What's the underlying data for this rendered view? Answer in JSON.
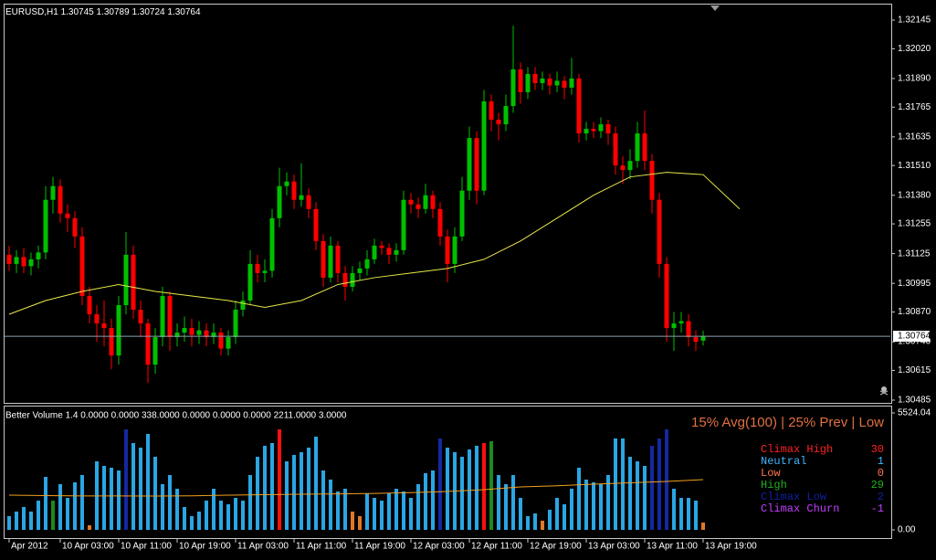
{
  "chart_data": [
    {
      "type": "candlestick",
      "title": "EURUSD,H1",
      "up_color": "#00c000",
      "down_color": "#ff0000",
      "xlim": [
        -0.625,
        120.625
      ],
      "ylim": [
        1.30477,
        1.32213
      ],
      "yticks": [
        1.32145,
        {
          "value": 1.3202,
          "label": "1.32020"
        },
        {
          "value": 1.3189,
          "label": "1.31890"
        },
        1.31765,
        1.31635,
        {
          "value": 1.3151,
          "label": "1.31510"
        },
        {
          "value": 1.3138,
          "label": "1.31380"
        },
        1.31255,
        1.31125,
        1.30995,
        {
          "value": 1.3087,
          "label": "1.30870"
        },
        {
          "value": 1.3074,
          "label": "1.30740"
        },
        1.30615,
        1.30485
      ],
      "candles": [
        [
          1.3112,
          1.3116,
          1.3105,
          1.3108
        ],
        [
          1.3108,
          1.3114,
          1.3104,
          1.3111
        ],
        [
          1.3111,
          1.3115,
          1.3104,
          1.3107
        ],
        [
          1.3107,
          1.3113,
          1.3103,
          1.311
        ],
        [
          1.311,
          1.3116,
          1.3106,
          1.3113
        ],
        [
          1.3113,
          1.3142,
          1.311,
          1.3136
        ],
        [
          1.3136,
          1.3146,
          1.313,
          1.3142
        ],
        [
          1.3142,
          1.3145,
          1.3126,
          1.313
        ],
        [
          1.313,
          1.3134,
          1.3122,
          1.3128
        ],
        [
          1.3128,
          1.3131,
          1.3115,
          1.312
        ],
        [
          1.312,
          1.3124,
          1.309,
          1.3094
        ],
        [
          1.3094,
          1.3098,
          1.3082,
          1.3086
        ],
        [
          1.3086,
          1.309,
          1.3074,
          1.3082
        ],
        [
          1.3082,
          1.3092,
          1.3072,
          1.308
        ],
        [
          1.308,
          1.3084,
          1.3062,
          1.3068
        ],
        [
          1.3068,
          1.3094,
          1.3064,
          1.309
        ],
        [
          1.309,
          1.3122,
          1.3086,
          1.3112
        ],
        [
          1.3112,
          1.3116,
          1.3084,
          1.3088
        ],
        [
          1.3088,
          1.3092,
          1.3076,
          1.3082
        ],
        [
          1.3082,
          1.3084,
          1.3056,
          1.3064
        ],
        [
          1.3064,
          1.308,
          1.306,
          1.3076
        ],
        [
          1.3076,
          1.3098,
          1.3072,
          1.3094
        ],
        [
          1.3094,
          1.3096,
          1.307,
          1.3076
        ],
        [
          1.3076,
          1.3082,
          1.3072,
          1.3078
        ],
        [
          1.3078,
          1.3085,
          1.3074,
          1.308
        ],
        [
          1.308,
          1.3084,
          1.3072,
          1.3077
        ],
        [
          1.3077,
          1.3083,
          1.3073,
          1.3079
        ],
        [
          1.3079,
          1.3082,
          1.3072,
          1.3076
        ],
        [
          1.3076,
          1.3082,
          1.3073,
          1.3078
        ],
        [
          1.3078,
          1.308,
          1.3068,
          1.3071
        ],
        [
          1.3071,
          1.3079,
          1.3068,
          1.3076
        ],
        [
          1.3076,
          1.3092,
          1.3073,
          1.3088
        ],
        [
          1.3088,
          1.3096,
          1.3085,
          1.3092
        ],
        [
          1.3092,
          1.3114,
          1.309,
          1.3108
        ],
        [
          1.3108,
          1.3112,
          1.31,
          1.3104
        ],
        [
          1.3104,
          1.311,
          1.31,
          1.3105
        ],
        [
          1.3105,
          1.3132,
          1.3102,
          1.3128
        ],
        [
          1.3128,
          1.315,
          1.3124,
          1.3142
        ],
        [
          1.3142,
          1.3148,
          1.3138,
          1.3144
        ],
        [
          1.3144,
          1.3147,
          1.3132,
          1.3136
        ],
        [
          1.3136,
          1.3152,
          1.3133,
          1.3138
        ],
        [
          1.3138,
          1.3141,
          1.3128,
          1.3132
        ],
        [
          1.3132,
          1.3135,
          1.3114,
          1.3118
        ],
        [
          1.3118,
          1.3121,
          1.3098,
          1.3102
        ],
        [
          1.3102,
          1.312,
          1.31,
          1.3116
        ],
        [
          1.3116,
          1.3118,
          1.31,
          1.3104
        ],
        [
          1.3104,
          1.3107,
          1.3092,
          1.3098
        ],
        [
          1.3098,
          1.3107,
          1.3096,
          1.3104
        ],
        [
          1.3104,
          1.3109,
          1.3101,
          1.3106
        ],
        [
          1.3106,
          1.3114,
          1.3103,
          1.311
        ],
        [
          1.311,
          1.3119,
          1.3108,
          1.3116
        ],
        [
          1.3116,
          1.3118,
          1.3112,
          1.3115
        ],
        [
          1.3115,
          1.3117,
          1.3108,
          1.3112
        ],
        [
          1.3112,
          1.3117,
          1.3109,
          1.3114
        ],
        [
          1.3114,
          1.314,
          1.3112,
          1.3136
        ],
        [
          1.3136,
          1.3139,
          1.313,
          1.3134
        ],
        [
          1.3134,
          1.3137,
          1.3128,
          1.3132
        ],
        [
          1.3132,
          1.3143,
          1.313,
          1.3138
        ],
        [
          1.3138,
          1.314,
          1.3128,
          1.3132
        ],
        [
          1.3132,
          1.3135,
          1.3116,
          1.312
        ],
        [
          1.312,
          1.3123,
          1.31,
          1.3108
        ],
        [
          1.3108,
          1.3124,
          1.3104,
          1.312
        ],
        [
          1.312,
          1.3146,
          1.3118,
          1.314
        ],
        [
          1.314,
          1.3168,
          1.3136,
          1.3163
        ],
        [
          1.3163,
          1.3166,
          1.3134,
          1.314
        ],
        [
          1.314,
          1.3184,
          1.3138,
          1.3179
        ],
        [
          1.3179,
          1.3182,
          1.3166,
          1.3171
        ],
        [
          1.3171,
          1.3174,
          1.3162,
          1.3169
        ],
        [
          1.3169,
          1.3182,
          1.3166,
          1.3177
        ],
        [
          1.3177,
          1.3212,
          1.3174,
          1.3193
        ],
        [
          1.3193,
          1.3196,
          1.3178,
          1.3183
        ],
        [
          1.3183,
          1.3194,
          1.318,
          1.3191
        ],
        [
          1.3191,
          1.3194,
          1.3184,
          1.3187
        ],
        [
          1.3187,
          1.3192,
          1.3184,
          1.3189
        ],
        [
          1.3189,
          1.3191,
          1.3182,
          1.3186
        ],
        [
          1.3186,
          1.3192,
          1.3183,
          1.3188
        ],
        [
          1.3188,
          1.319,
          1.318,
          1.3185
        ],
        [
          1.3185,
          1.3198,
          1.3182,
          1.3189
        ],
        [
          1.3189,
          1.3191,
          1.3161,
          1.3165
        ],
        [
          1.3165,
          1.317,
          1.3162,
          1.3167
        ],
        [
          1.3167,
          1.317,
          1.3163,
          1.3166
        ],
        [
          1.3166,
          1.3172,
          1.3163,
          1.3169
        ],
        [
          1.3169,
          1.3171,
          1.316,
          1.3165
        ],
        [
          1.3165,
          1.3168,
          1.3147,
          1.3151
        ],
        [
          1.3151,
          1.3155,
          1.3143,
          1.3149
        ],
        [
          1.3149,
          1.3158,
          1.3145,
          1.3153
        ],
        [
          1.3153,
          1.317,
          1.315,
          1.3165
        ],
        [
          1.3165,
          1.3175,
          1.3149,
          1.3153
        ],
        [
          1.3153,
          1.3156,
          1.313,
          1.3136
        ],
        [
          1.3136,
          1.3139,
          1.3102,
          1.3108
        ],
        [
          1.3108,
          1.3111,
          1.3074,
          1.308
        ],
        [
          1.308,
          1.3087,
          1.307,
          1.3082
        ],
        [
          1.3082,
          1.3087,
          1.3078,
          1.3083
        ],
        [
          1.3083,
          1.3086,
          1.3072,
          1.3076
        ],
        [
          1.3076,
          1.3079,
          1.307,
          1.3074
        ],
        [
          1.30745,
          1.30789,
          1.30724,
          1.30764
        ]
      ],
      "ma": {
        "color": "#e8e84a",
        "x": [
          0,
          5,
          10,
          15,
          20,
          25,
          30,
          35,
          40,
          45,
          50,
          55,
          60,
          65,
          70,
          75,
          80,
          85,
          90,
          95,
          100
        ],
        "values": [
          1.3086,
          1.3092,
          1.3096,
          1.3099,
          1.3096,
          1.3094,
          1.3092,
          1.3089,
          1.3092,
          1.3099,
          1.3102,
          1.3104,
          1.3106,
          1.311,
          1.3118,
          1.3128,
          1.3138,
          1.3146,
          1.3148,
          1.3147,
          1.3132
        ]
      }
    },
    {
      "type": "bar",
      "title": "Better Volume 1.4 0.0000 0.0000 338.0000 0.0000 0.0000 0.0000 2211.0000 3.0000",
      "subtitle": "15% Avg(100) | 25% Prev | Low",
      "xlim": [
        -0.625,
        120.625
      ],
      "xticks": [
        {
          "value": 0,
          "label": "Apr 2012"
        },
        {
          "value": 7,
          "label": "10 Apr 03:00"
        },
        {
          "value": 15,
          "label": "10 Apr 11:00"
        },
        {
          "value": 23,
          "label": "10 Apr 19:00"
        },
        {
          "value": 31,
          "label": "11 Apr 03:00"
        },
        {
          "value": 39,
          "label": "11 Apr 11:00"
        },
        {
          "value": 47,
          "label": "11 Apr 19:00"
        },
        {
          "value": 55,
          "label": "12 Apr 03:00"
        },
        {
          "value": 63,
          "label": "12 Apr 11:00"
        },
        {
          "value": 71,
          "label": "12 Apr 19:00"
        },
        {
          "value": 79,
          "label": "13 Apr 03:00"
        },
        {
          "value": 87,
          "label": "13 Apr 11:00"
        },
        {
          "value": 95,
          "label": "13 Apr 19:00"
        }
      ],
      "ylim": [
        0,
        5524.04
      ],
      "yticks": [
        5524.04,
        {
          "value": 0,
          "label": "0.00"
        }
      ],
      "values": [
        647,
        863,
        1079,
        863,
        1381,
        2503,
        1381,
        2158,
        1511,
        2244,
        2590,
        216,
        3237,
        3021,
        2935,
        2805,
        4748,
        4100,
        3884,
        4532,
        3453,
        2158,
        2590,
        1942,
        1079,
        647,
        863,
        1381,
        1942,
        1381,
        1208,
        1511,
        1381,
        2590,
        3453,
        3971,
        4100,
        4748,
        3237,
        3539,
        3669,
        3884,
        4402,
        2805,
        2374,
        1813,
        1942,
        863,
        647,
        1726,
        1511,
        1381,
        1726,
        1942,
        1813,
        1511,
        2158,
        2676,
        2805,
        4316,
        3884,
        3669,
        3453,
        3798,
        3971,
        4100,
        4187,
        2590,
        2158,
        2590,
        1511,
        647,
        777,
        432,
        950,
        1511,
        1208,
        1942,
        2935,
        2374,
        2244,
        2158,
        2590,
        4316,
        4316,
        3453,
        3237,
        3021,
        3971,
        4316,
        4748,
        1942,
        1511,
        1511,
        1381,
        345
      ],
      "colors": [
        "#2aa6e4",
        "#2aa6e4",
        "#2aa6e4",
        "#2aa6e4",
        "#2aa6e4",
        "#2aa6e4",
        "#1c8a1c",
        "#2aa6e4",
        "#2aa6e4",
        "#2aa6e4",
        "#2aa6e4",
        "#e07828",
        "#2aa6e4",
        "#2aa6e4",
        "#2aa6e4",
        "#2aa6e4",
        "#1428a0",
        "#2aa6e4",
        "#2aa6e4",
        "#2aa6e4",
        "#2aa6e4",
        "#2aa6e4",
        "#2aa6e4",
        "#2aa6e4",
        "#2aa6e4",
        "#2aa6e4",
        "#2aa6e4",
        "#2aa6e4",
        "#2aa6e4",
        "#2aa6e4",
        "#2aa6e4",
        "#2aa6e4",
        "#2aa6e4",
        "#2aa6e4",
        "#2aa6e4",
        "#2aa6e4",
        "#2aa6e4",
        "#ff1010",
        "#2aa6e4",
        "#2aa6e4",
        "#2aa6e4",
        "#2aa6e4",
        "#2aa6e4",
        "#2aa6e4",
        "#2aa6e4",
        "#2aa6e4",
        "#2aa6e4",
        "#e07828",
        "#e07828",
        "#2aa6e4",
        "#2aa6e4",
        "#2aa6e4",
        "#2aa6e4",
        "#2aa6e4",
        "#2aa6e4",
        "#2aa6e4",
        "#2aa6e4",
        "#2aa6e4",
        "#2aa6e4",
        "#1428a0",
        "#2aa6e4",
        "#2aa6e4",
        "#2aa6e4",
        "#2aa6e4",
        "#2aa6e4",
        "#ff1010",
        "#1c8a1c",
        "#2aa6e4",
        "#2aa6e4",
        "#2aa6e4",
        "#2aa6e4",
        "#2aa6e4",
        "#2aa6e4",
        "#e07828",
        "#2aa6e4",
        "#2aa6e4",
        "#2aa6e4",
        "#2aa6e4",
        "#2aa6e4",
        "#2aa6e4",
        "#2aa6e4",
        "#2aa6e4",
        "#2aa6e4",
        "#2aa6e4",
        "#2aa6e4",
        "#2aa6e4",
        "#2aa6e4",
        "#2aa6e4",
        "#1428a0",
        "#1428a0",
        "#1428a0",
        "#2aa6e4",
        "#2aa6e4",
        "#2aa6e4",
        "#2aa6e4",
        "#e07828"
      ],
      "ma": {
        "color": "#f0a020",
        "x": [
          0,
          5,
          10,
          15,
          20,
          25,
          30,
          35,
          40,
          45,
          50,
          55,
          60,
          65,
          70,
          75,
          80,
          85,
          90,
          95
        ],
        "values": [
          1640,
          1620,
          1600,
          1600,
          1597,
          1610,
          1640,
          1660,
          1683,
          1700,
          1720,
          1760,
          1813,
          1900,
          2029,
          2080,
          2158,
          2220,
          2287,
          2374
        ]
      },
      "legend": [
        {
          "name": "Climax High",
          "color": "#ff2020",
          "value": 30
        },
        {
          "name": "Neutral",
          "color": "#40b4ff",
          "value": 1
        },
        {
          "name": "Low",
          "color": "#ff7850",
          "value": 0
        },
        {
          "name": "High",
          "color": "#20b020",
          "value": 29
        },
        {
          "name": "Climax Low",
          "color": "#1020a0",
          "value": 2
        },
        {
          "name": "Climax Churn",
          "color": "#c040ff",
          "value": -1
        }
      ]
    }
  ]
}
